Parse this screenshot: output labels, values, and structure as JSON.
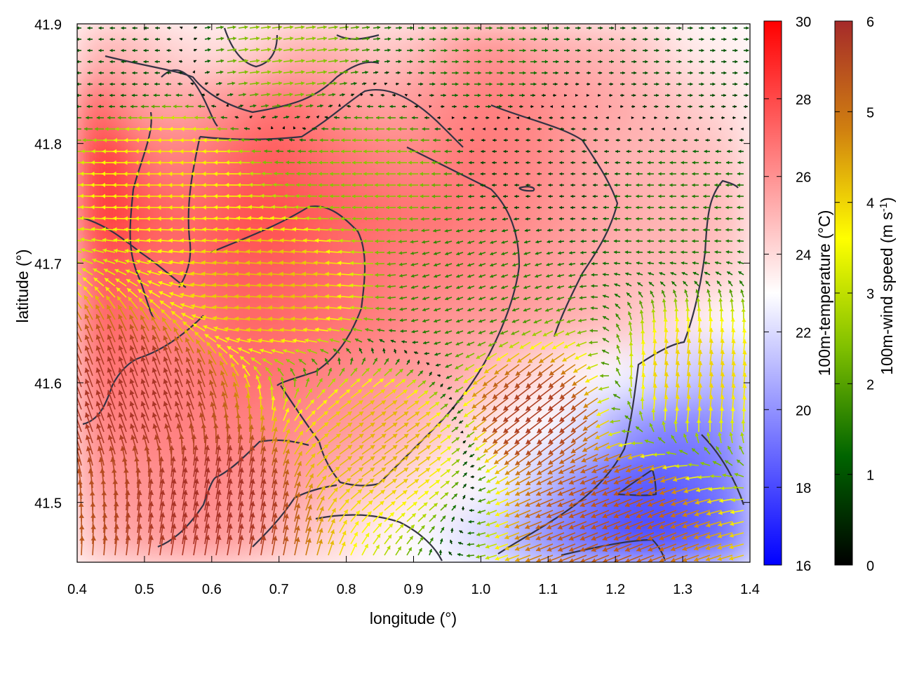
{
  "chart_data": {
    "type": "heatmap",
    "xlabel": "longitude (°)",
    "ylabel": "latitude (°)",
    "xlim": [
      0.4,
      1.4
    ],
    "ylim": [
      41.45,
      41.9
    ],
    "xticks": [
      "0.4",
      "0.5",
      "0.6",
      "0.7",
      "0.8",
      "0.9",
      "1.0",
      "1.1",
      "1.2",
      "1.3",
      "1.4"
    ],
    "yticks": [
      "41.5",
      "41.6",
      "41.7",
      "41.8",
      "41.9"
    ],
    "colorbars": [
      {
        "label": "100m-temperature (°C)",
        "range": [
          16,
          30
        ],
        "ticks": [
          "16",
          "18",
          "20",
          "22",
          "24",
          "26",
          "28",
          "30"
        ],
        "colors": [
          "#0000ff",
          "#ffffff",
          "#ff0000"
        ]
      },
      {
        "label_main": "100m-wind speed (m s",
        "label_sup": "-1",
        "label_end": ")",
        "range": [
          0,
          6
        ],
        "ticks": [
          "0",
          "1",
          "2",
          "3",
          "4",
          "5",
          "6"
        ],
        "colors": [
          "#000000",
          "#006400",
          "#80c000",
          "#ffff00",
          "#d08010",
          "#a52a2a"
        ]
      }
    ],
    "temperature_field": [
      [
        25,
        25,
        24.5,
        24,
        24,
        24.2,
        25,
        25.2,
        25,
        24.5,
        24.8,
        25.5,
        26,
        26,
        25.5,
        25.2,
        25,
        24.8,
        24,
        23.5,
        23.5
      ],
      [
        28.5,
        26,
        25.5,
        25.5,
        26,
        26.5,
        27,
        26.5,
        25.8,
        25.5,
        25.8,
        26.2,
        26.5,
        26.5,
        26.2,
        25.8,
        25.5,
        25.2,
        24.8,
        24.3,
        24
      ],
      [
        29.5,
        28,
        26.5,
        26.5,
        27,
        27.5,
        27.5,
        27,
        26.8,
        26.5,
        26.2,
        26.5,
        26.8,
        26.5,
        26.2,
        25.8,
        25.2,
        25,
        25,
        24.8,
        24.5
      ],
      [
        29,
        28,
        27.5,
        27,
        27.5,
        27.8,
        27.8,
        27.5,
        27.2,
        27,
        26.8,
        26.8,
        26.5,
        26.5,
        26,
        25.8,
        25.5,
        25.2,
        25,
        25,
        24.8
      ],
      [
        28,
        27.5,
        27,
        27,
        27.5,
        27.5,
        27.5,
        27.2,
        27,
        26.8,
        26.5,
        26.5,
        26.3,
        26,
        25.8,
        25.5,
        25.2,
        25,
        25,
        24.8,
        24.5
      ],
      [
        27.5,
        27,
        26.8,
        26.5,
        27,
        27.2,
        27,
        27,
        26.8,
        26.5,
        26.2,
        26,
        25.8,
        25.8,
        25.5,
        25.2,
        25,
        24.5,
        24,
        23.5,
        23
      ],
      [
        27,
        26.8,
        26.5,
        26.5,
        26.8,
        27,
        26.8,
        26.5,
        26.2,
        26,
        25.8,
        25.5,
        25,
        24.5,
        24,
        23.5,
        23,
        22.5,
        22,
        21.5,
        21
      ],
      [
        26.5,
        26.5,
        26.5,
        26.5,
        26.5,
        26.5,
        26.3,
        26,
        25.8,
        25.5,
        25,
        24.5,
        24,
        23.5,
        23,
        22.5,
        21,
        20,
        19.5,
        19.5,
        20
      ],
      [
        26,
        26,
        26,
        26.3,
        26.3,
        26,
        25.8,
        25.5,
        25,
        24.5,
        24,
        23.5,
        23,
        22.5,
        21.5,
        20,
        19,
        18.5,
        18.5,
        19,
        19.5
      ],
      [
        25,
        25.5,
        25.8,
        26,
        26,
        25.5,
        25,
        24.5,
        24,
        23.5,
        23,
        22.5,
        22,
        21,
        20,
        19,
        18.5,
        18,
        18,
        18.5,
        19
      ]
    ],
    "wind_speed_samples": [
      {
        "lon": 0.45,
        "lat": 41.87,
        "u": -1.0,
        "v": 0.0
      },
      {
        "lon": 0.7,
        "lat": 41.87,
        "u": 2.5,
        "v": 0.3
      },
      {
        "lon": 1.0,
        "lat": 41.87,
        "u": 1.5,
        "v": 0.0
      },
      {
        "lon": 1.3,
        "lat": 41.87,
        "u": 1.0,
        "v": 0.0
      },
      {
        "lon": 0.55,
        "lat": 41.78,
        "u": -3.8,
        "v": 0.0
      },
      {
        "lon": 0.85,
        "lat": 41.78,
        "u": -2.5,
        "v": 0.0
      },
      {
        "lon": 1.1,
        "lat": 41.78,
        "u": -0.8,
        "v": 0.0
      },
      {
        "lon": 1.3,
        "lat": 41.75,
        "u": -1.5,
        "v": 0.0
      },
      {
        "lon": 0.7,
        "lat": 41.68,
        "u": -4.2,
        "v": 0.3
      },
      {
        "lon": 1.0,
        "lat": 41.68,
        "u": -1.5,
        "v": -0.5
      },
      {
        "lon": 0.5,
        "lat": 41.58,
        "u": -2.0,
        "v": 5.5
      },
      {
        "lon": 0.85,
        "lat": 41.55,
        "u": 3.5,
        "v": 2.5
      },
      {
        "lon": 1.1,
        "lat": 41.58,
        "u": -4.5,
        "v": -3.5
      },
      {
        "lon": 1.3,
        "lat": 41.6,
        "u": 0.5,
        "v": 4.0
      },
      {
        "lon": 0.6,
        "lat": 41.5,
        "u": 1.0,
        "v": 5.8
      },
      {
        "lon": 1.2,
        "lat": 41.5,
        "u": -5.0,
        "v": -2.0
      }
    ]
  }
}
